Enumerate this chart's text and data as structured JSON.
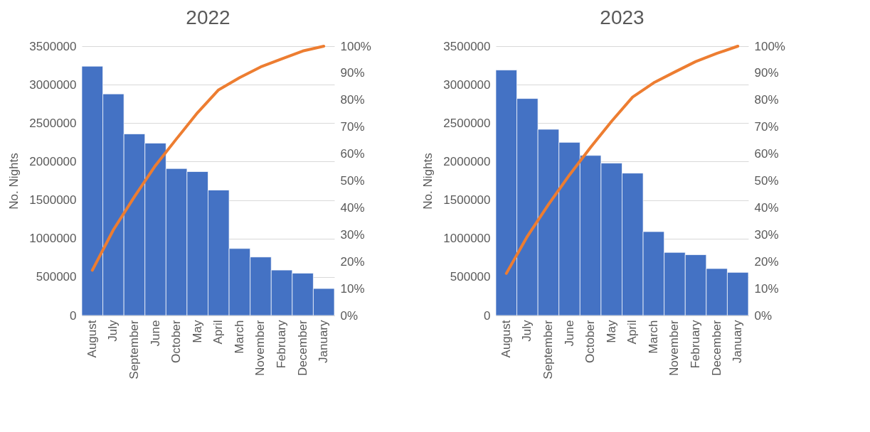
{
  "chart_data": [
    {
      "type": "bar",
      "title": "2022",
      "ylabel": "No. Nights",
      "categories": [
        "August",
        "July",
        "September",
        "June",
        "October",
        "May",
        "April",
        "March",
        "November",
        "February",
        "December",
        "January"
      ],
      "series": [
        {
          "color": "#4472c4",
          "values": [
            3240000,
            2880000,
            2360000,
            2240000,
            1910000,
            1870000,
            1630000,
            870000,
            760000,
            590000,
            550000,
            350000
          ]
        },
        {
          "type": "line",
          "axis": "y2",
          "color": "#ed7d31",
          "values": [
            16.8,
            31.8,
            44.1,
            55.7,
            65.6,
            75.3,
            83.8,
            88.3,
            92.3,
            95.3,
            98.2,
            100
          ]
        }
      ],
      "ylim": [
        0,
        3500000
      ],
      "yticks": [
        0,
        500000,
        1000000,
        1500000,
        2000000,
        2500000,
        3000000,
        3500000
      ],
      "y2lim": [
        0,
        100
      ],
      "y2ticks": [
        {
          "value": 0,
          "label": "0%"
        },
        {
          "value": 10,
          "label": "10%"
        },
        {
          "value": 20,
          "label": "20%"
        },
        {
          "value": 30,
          "label": "30%"
        },
        {
          "value": 40,
          "label": "40%"
        },
        {
          "value": 50,
          "label": "50%"
        },
        {
          "value": 60,
          "label": "60%"
        },
        {
          "value": 70,
          "label": "70%"
        },
        {
          "value": 80,
          "label": "80%"
        },
        {
          "value": 90,
          "label": "90%"
        },
        {
          "value": 100,
          "label": "100%"
        }
      ],
      "grid": "y"
    },
    {
      "type": "bar",
      "title": "2023",
      "ylabel": "No. Nights",
      "categories": [
        "August",
        "July",
        "September",
        "June",
        "October",
        "May",
        "April",
        "March",
        "November",
        "February",
        "December",
        "January"
      ],
      "series": [
        {
          "color": "#4472c4",
          "values": [
            3190000,
            2820000,
            2420000,
            2250000,
            2080000,
            1980000,
            1850000,
            1090000,
            820000,
            790000,
            610000,
            560000
          ]
        },
        {
          "type": "line",
          "axis": "y2",
          "color": "#ed7d31",
          "values": [
            15.6,
            29.4,
            41.2,
            52.2,
            62.4,
            72.1,
            81.1,
            86.4,
            90.4,
            94.3,
            97.3,
            100
          ]
        }
      ],
      "ylim": [
        0,
        3500000
      ],
      "yticks": [
        0,
        500000,
        1000000,
        1500000,
        2000000,
        2500000,
        3000000,
        3500000
      ],
      "y2lim": [
        0,
        100
      ],
      "y2ticks": [
        {
          "value": 0,
          "label": "0%"
        },
        {
          "value": 10,
          "label": "10%"
        },
        {
          "value": 20,
          "label": "20%"
        },
        {
          "value": 30,
          "label": "30%"
        },
        {
          "value": 40,
          "label": "40%"
        },
        {
          "value": 50,
          "label": "50%"
        },
        {
          "value": 60,
          "label": "60%"
        },
        {
          "value": 70,
          "label": "70%"
        },
        {
          "value": 80,
          "label": "80%"
        },
        {
          "value": 90,
          "label": "90%"
        },
        {
          "value": 100,
          "label": "100%"
        }
      ],
      "grid": "y"
    }
  ]
}
